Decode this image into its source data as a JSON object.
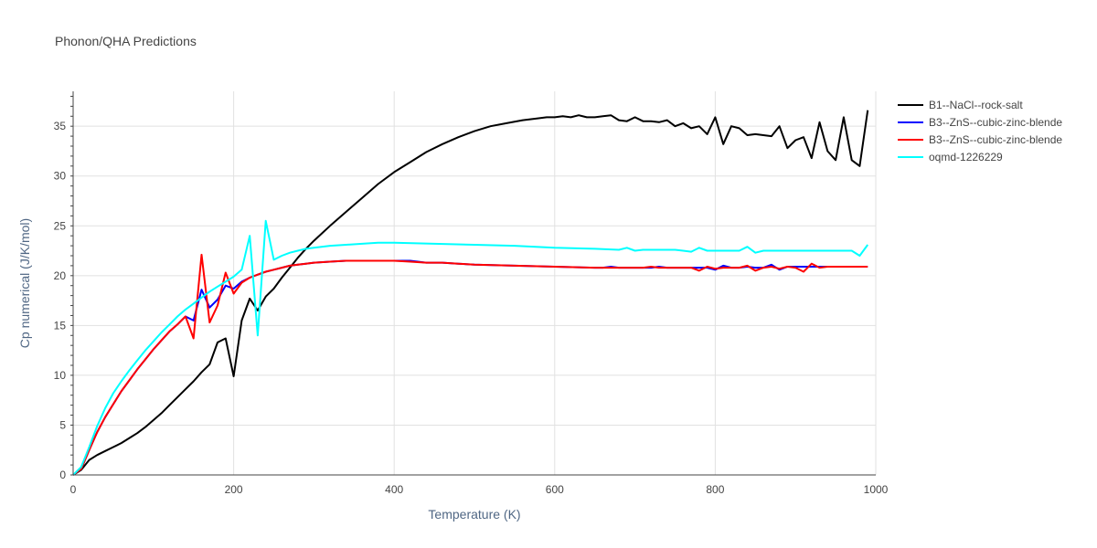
{
  "chart_data": {
    "type": "line",
    "title": "Phonon/QHA Predictions",
    "xlabel": "Temperature (K)",
    "ylabel": "Cp numerical (J/K/mol)",
    "xlim": [
      0,
      1000
    ],
    "ylim": [
      0,
      38.5
    ],
    "xticks": [
      0,
      200,
      400,
      600,
      800,
      1000
    ],
    "yticks": [
      0,
      5,
      10,
      15,
      20,
      25,
      30,
      35
    ],
    "grid": true,
    "legend_position": "top-right outside",
    "series": [
      {
        "name": "B1--NaCl--rock-salt",
        "color": "#000000",
        "x": [
          0,
          10,
          20,
          30,
          40,
          50,
          60,
          70,
          80,
          90,
          100,
          110,
          120,
          130,
          140,
          150,
          160,
          170,
          180,
          190,
          200,
          210,
          220,
          230,
          240,
          250,
          260,
          270,
          280,
          290,
          300,
          320,
          340,
          360,
          380,
          400,
          420,
          440,
          460,
          480,
          500,
          520,
          540,
          560,
          580,
          590,
          600,
          610,
          620,
          630,
          640,
          650,
          660,
          670,
          680,
          690,
          700,
          710,
          720,
          730,
          740,
          750,
          760,
          770,
          780,
          790,
          800,
          810,
          820,
          830,
          840,
          850,
          860,
          870,
          880,
          890,
          900,
          910,
          920,
          930,
          940,
          950,
          960,
          970,
          980,
          990
        ],
        "y": [
          0,
          0.5,
          1.5,
          2.0,
          2.4,
          2.8,
          3.2,
          3.7,
          4.2,
          4.8,
          5.5,
          6.2,
          7.0,
          7.8,
          8.6,
          9.4,
          10.3,
          11.1,
          13.3,
          13.7,
          9.9,
          15.5,
          17.7,
          16.5,
          17.9,
          18.7,
          19.8,
          20.8,
          21.8,
          22.7,
          23.5,
          25.0,
          26.4,
          27.8,
          29.2,
          30.4,
          31.4,
          32.4,
          33.2,
          33.9,
          34.5,
          35.0,
          35.3,
          35.6,
          35.8,
          35.9,
          35.9,
          36.0,
          35.9,
          36.1,
          35.9,
          35.9,
          36.0,
          36.1,
          35.6,
          35.5,
          35.9,
          35.5,
          35.5,
          35.4,
          35.6,
          35.0,
          35.3,
          34.8,
          35.0,
          34.2,
          35.9,
          33.2,
          35.0,
          34.8,
          34.1,
          34.2,
          34.1,
          34.0,
          35.0,
          32.8,
          33.6,
          33.9,
          31.8,
          35.4,
          32.5,
          31.6,
          35.9,
          31.6,
          31.0,
          36.6
        ]
      },
      {
        "name": "B3--ZnS--cubic-zinc-blende",
        "color": "#0000ff",
        "x": [
          0,
          10,
          20,
          30,
          40,
          50,
          60,
          70,
          80,
          90,
          100,
          110,
          120,
          130,
          140,
          150,
          160,
          170,
          180,
          190,
          200,
          210,
          220,
          230,
          240,
          250,
          260,
          270,
          280,
          290,
          300,
          320,
          340,
          360,
          380,
          400,
          420,
          440,
          460,
          480,
          500,
          550,
          600,
          650,
          660,
          670,
          680,
          690,
          700,
          710,
          720,
          730,
          740,
          750,
          760,
          770,
          780,
          790,
          800,
          810,
          820,
          830,
          840,
          850,
          860,
          870,
          880,
          890,
          900,
          910,
          920,
          930,
          940,
          950,
          960,
          970,
          980,
          990
        ],
        "y": [
          0,
          0.6,
          2.5,
          4.3,
          5.8,
          7.1,
          8.4,
          9.5,
          10.6,
          11.6,
          12.6,
          13.5,
          14.4,
          15.1,
          15.9,
          15.5,
          18.6,
          16.8,
          17.6,
          19.0,
          18.7,
          19.4,
          19.8,
          20.1,
          20.4,
          20.6,
          20.8,
          21.0,
          21.1,
          21.2,
          21.3,
          21.4,
          21.5,
          21.5,
          21.5,
          21.5,
          21.5,
          21.3,
          21.3,
          21.2,
          21.1,
          21.0,
          20.9,
          20.8,
          20.8,
          20.9,
          20.8,
          20.8,
          20.8,
          20.8,
          20.8,
          20.9,
          20.8,
          20.8,
          20.8,
          20.8,
          20.8,
          20.8,
          20.6,
          21.0,
          20.8,
          20.8,
          20.9,
          20.8,
          20.8,
          21.1,
          20.6,
          20.9,
          20.9,
          20.9,
          20.9,
          20.9,
          20.9,
          20.9,
          20.9,
          20.9,
          20.9,
          20.9
        ]
      },
      {
        "name": "B3--ZnS--cubic-zinc-blende",
        "color": "#ff0000",
        "x": [
          0,
          10,
          20,
          30,
          40,
          50,
          60,
          70,
          80,
          90,
          100,
          110,
          120,
          130,
          140,
          150,
          160,
          170,
          180,
          190,
          200,
          210,
          220,
          230,
          240,
          250,
          260,
          270,
          280,
          290,
          300,
          320,
          340,
          360,
          380,
          400,
          420,
          440,
          460,
          480,
          500,
          550,
          600,
          650,
          660,
          670,
          680,
          690,
          700,
          710,
          720,
          730,
          740,
          750,
          760,
          770,
          780,
          790,
          800,
          810,
          820,
          830,
          840,
          850,
          860,
          870,
          880,
          890,
          900,
          910,
          920,
          930,
          940,
          950,
          960,
          970,
          980,
          990
        ],
        "y": [
          0,
          0.6,
          2.5,
          4.3,
          5.8,
          7.1,
          8.4,
          9.5,
          10.6,
          11.6,
          12.6,
          13.5,
          14.4,
          15.1,
          15.9,
          13.7,
          22.1,
          15.3,
          17.0,
          20.3,
          18.2,
          19.3,
          19.8,
          20.1,
          20.4,
          20.6,
          20.8,
          21.0,
          21.1,
          21.2,
          21.3,
          21.4,
          21.5,
          21.5,
          21.5,
          21.5,
          21.4,
          21.3,
          21.3,
          21.2,
          21.1,
          21.0,
          20.9,
          20.8,
          20.8,
          20.8,
          20.8,
          20.8,
          20.8,
          20.8,
          20.9,
          20.8,
          20.8,
          20.8,
          20.8,
          20.8,
          20.5,
          20.9,
          20.7,
          20.8,
          20.8,
          20.8,
          21.0,
          20.5,
          20.8,
          20.9,
          20.7,
          20.9,
          20.8,
          20.4,
          21.2,
          20.8,
          20.9,
          20.9,
          20.9,
          20.9,
          20.9,
          20.9
        ]
      },
      {
        "name": "oqmd-1226229",
        "color": "#00ffff",
        "x": [
          0,
          10,
          20,
          30,
          40,
          50,
          60,
          70,
          80,
          90,
          100,
          110,
          120,
          130,
          140,
          150,
          160,
          170,
          180,
          190,
          200,
          210,
          220,
          230,
          240,
          250,
          260,
          270,
          280,
          290,
          300,
          320,
          340,
          360,
          380,
          400,
          450,
          500,
          550,
          600,
          650,
          680,
          690,
          700,
          710,
          720,
          730,
          740,
          750,
          760,
          770,
          780,
          790,
          800,
          810,
          820,
          830,
          840,
          850,
          860,
          870,
          880,
          890,
          900,
          910,
          920,
          930,
          940,
          950,
          960,
          970,
          980,
          990
        ],
        "y": [
          0,
          0.8,
          2.8,
          4.9,
          6.7,
          8.2,
          9.4,
          10.5,
          11.5,
          12.5,
          13.4,
          14.3,
          15.1,
          15.9,
          16.6,
          17.2,
          17.8,
          18.4,
          18.9,
          19.4,
          19.9,
          20.6,
          24.0,
          14.0,
          25.5,
          21.6,
          22.0,
          22.3,
          22.5,
          22.7,
          22.8,
          23.0,
          23.1,
          23.2,
          23.3,
          23.3,
          23.2,
          23.1,
          23.0,
          22.8,
          22.7,
          22.6,
          22.8,
          22.5,
          22.6,
          22.6,
          22.6,
          22.6,
          22.6,
          22.5,
          22.4,
          22.8,
          22.5,
          22.5,
          22.5,
          22.5,
          22.5,
          22.9,
          22.3,
          22.5,
          22.5,
          22.5,
          22.5,
          22.5,
          22.5,
          22.5,
          22.5,
          22.5,
          22.5,
          22.5,
          22.5,
          22.0,
          23.1
        ]
      }
    ]
  }
}
